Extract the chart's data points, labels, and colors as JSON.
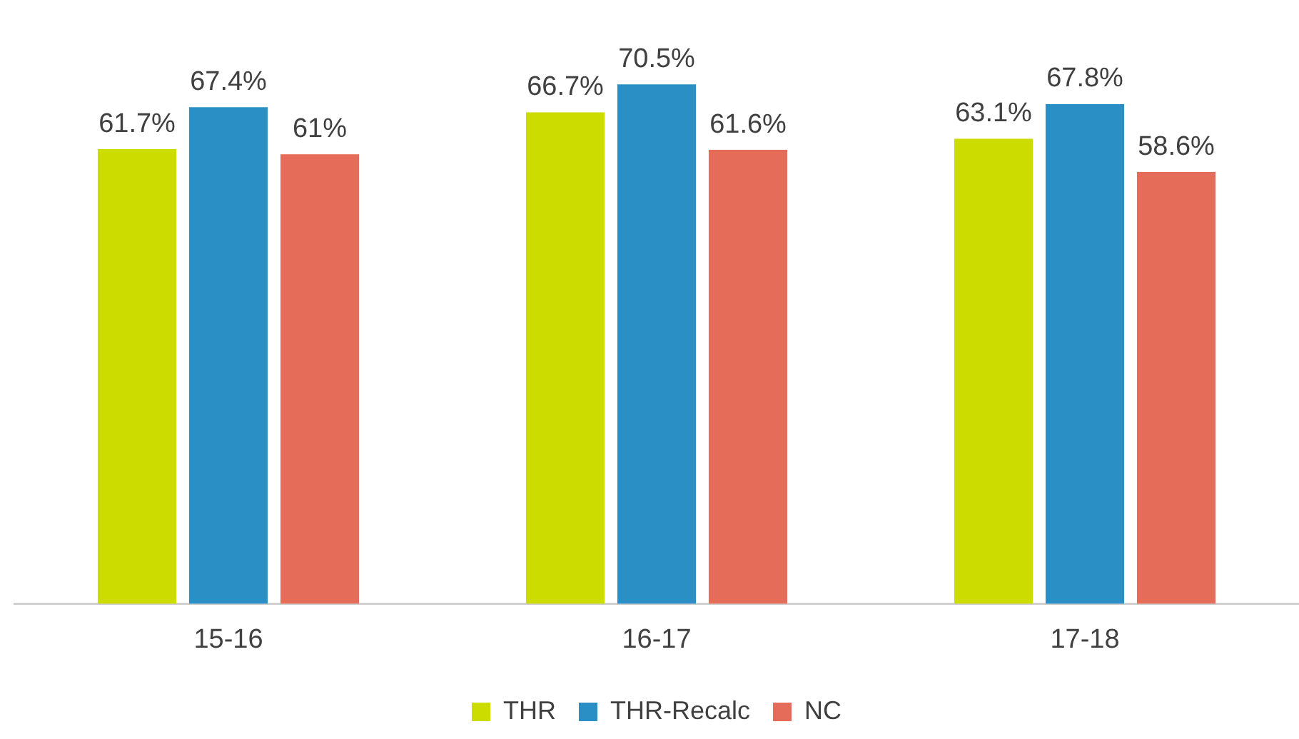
{
  "chart_data": {
    "type": "bar",
    "categories": [
      "15-16",
      "16-17",
      "17-18"
    ],
    "series": [
      {
        "name": "THR",
        "color": "#cddc00",
        "values": [
          61.7,
          66.7,
          63.1
        ],
        "value_labels": [
          "61.7%",
          "66.7%",
          "63.1%"
        ]
      },
      {
        "name": "THR-Recalc",
        "color": "#2a8fc4",
        "values": [
          67.4,
          70.5,
          67.8
        ],
        "value_labels": [
          "67.4%",
          "70.5%",
          "67.8%"
        ]
      },
      {
        "name": "NC",
        "color": "#e46c58",
        "values": [
          61,
          61.6,
          58.6
        ],
        "value_labels": [
          "61%",
          "61.6%",
          "58.6%"
        ]
      }
    ],
    "grid": false,
    "legend": "bottom"
  }
}
